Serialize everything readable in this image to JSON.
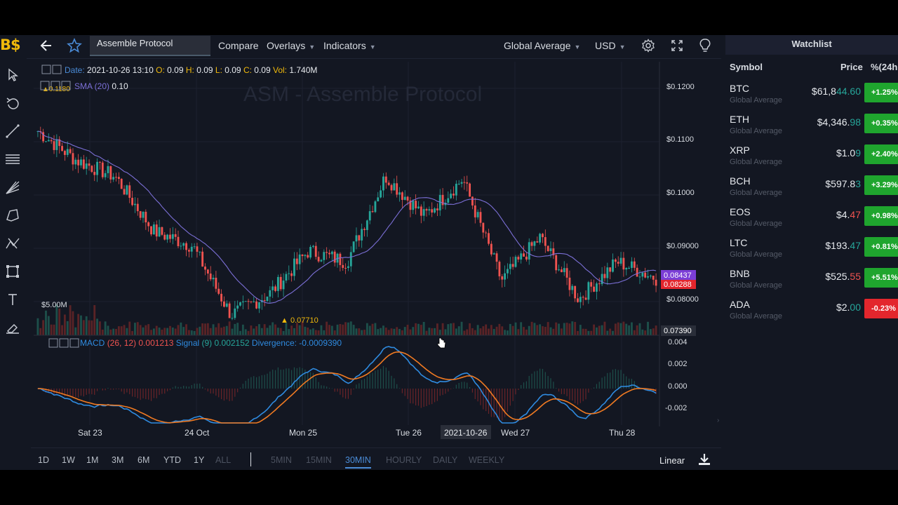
{
  "logo": "B$",
  "toolbar": {
    "symbol_value": "Assemble Protocol",
    "compare": "Compare",
    "overlays": "Overlays",
    "indicators": "Indicators",
    "source": "Global Average",
    "currency": "USD"
  },
  "chart": {
    "watermark": "ASM - Assemble Protocol",
    "ohlc": {
      "date_label": "Date:",
      "date": "2021-10-26 13:10",
      "o_label": "O:",
      "o": "0.09",
      "h_label": "H:",
      "h": "0.09",
      "l_label": "L:",
      "l": "0.09",
      "c_label": "C:",
      "c": "0.09",
      "vol_label": "Vol:",
      "vol": "1.740M"
    },
    "sma": {
      "label": "SMA (20)",
      "value": "0.10"
    },
    "high_marker": "0.1180",
    "low_marker": "0.07710",
    "volume_label": "$5.00M",
    "macd": {
      "label": "MACD",
      "params": "(26, 12)",
      "value": "0.001213",
      "signal_label": "Signal",
      "signal_param": "(9)",
      "signal_value": "0.002152",
      "div_label": "Divergence:",
      "div_value": "-0.0009390"
    },
    "price_axis": [
      "$0.1200",
      "$0.1100",
      "$0.1000",
      "$0.09000",
      "$0.08000"
    ],
    "current_price": "0.08437",
    "current_price2": "0.08288",
    "volume_axis": "0.07390",
    "macd_axis": [
      "0.004",
      "0.002",
      "0.000",
      "-0.002"
    ],
    "x_ticks": [
      "Sat 23",
      "24 Oct",
      "Mon 25",
      "Tue 26",
      "Wed 27",
      "Thu 28"
    ],
    "crosshair_date": "2021-10-26",
    "colors": {
      "up": "#26a69a",
      "down": "#ef5350",
      "sma": "#7b6fd6",
      "macd": "#2f8be0",
      "signal": "#f07a22",
      "accent": "#4a8bd6"
    }
  },
  "chart_data": {
    "type": "candlestick",
    "title": "ASM - Assemble Protocol",
    "x_ticks": [
      "Sat 23",
      "24 Oct",
      "Mon 25",
      "Tue 26",
      "Wed 27",
      "Thu 28"
    ],
    "ylim": [
      0.076,
      0.122
    ],
    "price_path": [
      [
        "Sat 23",
        0.112
      ],
      [
        "Sat 23",
        0.1065
      ],
      [
        "Sat 23",
        0.1035
      ],
      [
        "24 Oct",
        0.0932
      ],
      [
        "24 Oct",
        0.0905
      ],
      [
        "Mon 25",
        0.0775
      ],
      [
        "Mon 25",
        0.0815
      ],
      [
        "Mon 25",
        0.0895
      ],
      [
        "Tue 26",
        0.0875
      ],
      [
        "Tue 26",
        0.1035
      ],
      [
        "Tue 26",
        0.096
      ],
      [
        "Wed 27",
        0.103
      ],
      [
        "Wed 27",
        0.084
      ],
      [
        "Wed 27",
        0.092
      ],
      [
        "Thu 28",
        0.0805
      ],
      [
        "Thu 28",
        0.0875
      ],
      [
        "Thu 28",
        0.0844
      ]
    ],
    "annotations": {
      "high": 0.118,
      "low": 0.0771,
      "last": 0.08437,
      "sma20": 0.1
    },
    "macd": {
      "macd": 0.001213,
      "signal": 0.002152,
      "divergence": -0.000939,
      "ylim": [
        -0.003,
        0.004
      ]
    }
  },
  "bottom": {
    "ranges": [
      "1D",
      "1W",
      "1M",
      "3M",
      "6M",
      "YTD",
      "1Y",
      "ALL"
    ],
    "intervals": [
      "5MIN",
      "15MIN",
      "30MIN",
      "HOURLY",
      "DAILY",
      "WEEKLY"
    ],
    "active_interval": "30MIN",
    "scale": "Linear"
  },
  "watchlist": {
    "title": "Watchlist",
    "headers": {
      "symbol": "Symbol",
      "price": "Price",
      "change": "%(24h"
    },
    "rows": [
      {
        "sym": "BTC",
        "src": "Global Average",
        "price_head": "$61,8",
        "price_tail": "44.60",
        "chg": "+1.25%",
        "dir": "up"
      },
      {
        "sym": "ETH",
        "src": "Global Average",
        "price_head": "$4,346.",
        "price_tail": "98",
        "chg": "+0.35%",
        "dir": "up"
      },
      {
        "sym": "XRP",
        "src": "Global Average",
        "price_head": "$1.0",
        "price_tail": "9",
        "chg": "+2.40%",
        "dir": "up"
      },
      {
        "sym": "BCH",
        "src": "Global Average",
        "price_head": "$597.8",
        "price_tail": "3",
        "chg": "+3.29%",
        "dir": "up"
      },
      {
        "sym": "EOS",
        "src": "Global Average",
        "price_head": "$4.",
        "price_tail": "47",
        "chg": "+0.98%",
        "dir": "down"
      },
      {
        "sym": "LTC",
        "src": "Global Average",
        "price_head": "$193.",
        "price_tail": "47",
        "chg": "+0.81%",
        "dir": "up"
      },
      {
        "sym": "BNB",
        "src": "Global Average",
        "price_head": "$525.",
        "price_tail": "55",
        "chg": "+5.51%",
        "dir": "down"
      },
      {
        "sym": "ADA",
        "src": "Global Average",
        "price_head": "$2.",
        "price_tail": "00",
        "chg": "-0.23%",
        "dir": "up"
      }
    ],
    "colors": {
      "pos": "#1fa52e",
      "neg": "#e3262d"
    }
  }
}
